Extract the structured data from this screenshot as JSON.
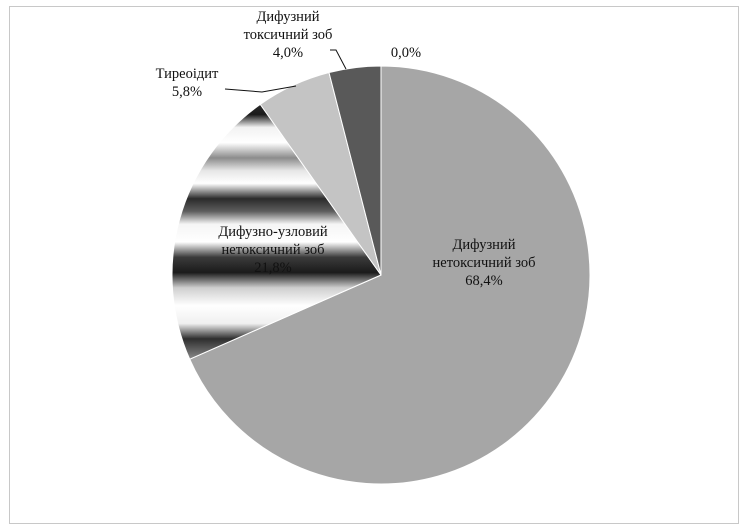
{
  "chart_data": {
    "type": "pie",
    "title": "",
    "start_angle_deg": 0,
    "direction": "clockwise",
    "slices": [
      {
        "label_lines": [
          "Дифузний",
          "нетоксичний зоб",
          "68,4%"
        ],
        "value": 68.4,
        "fill": "#a6a6a6"
      },
      {
        "label_lines": [
          "Дифузно-узловий",
          "нетоксичний зоб",
          "21,8%"
        ],
        "value": 21.8,
        "fill": "url(#stripeGrad)"
      },
      {
        "label_lines": [
          "Тиреоідит",
          "5,8%"
        ],
        "value": 5.8,
        "fill": "#c4c4c4"
      },
      {
        "label_lines": [
          "Дифузний",
          "токсичний зоб",
          "4,0%"
        ],
        "value": 4.0,
        "fill": "#595959"
      },
      {
        "label_lines": [
          "0,0%"
        ],
        "value": 0.0,
        "fill": "#ffffff"
      }
    ]
  }
}
